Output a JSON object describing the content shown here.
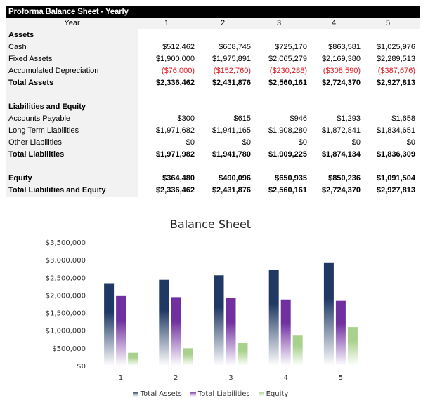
{
  "sheet": {
    "title": "Proforma Balance Sheet - Yearly",
    "header": {
      "label": "Year",
      "years": [
        "1",
        "2",
        "3",
        "4",
        "5"
      ]
    },
    "rows": [
      {
        "label": "Assets",
        "bold": true,
        "values": []
      },
      {
        "label": "Cash",
        "values": [
          "$512,462",
          "$608,745",
          "$725,170",
          "$863,581",
          "$1,025,976"
        ]
      },
      {
        "label": "Fixed Assets",
        "values": [
          "$1,900,000",
          "$1,975,891",
          "$2,065,279",
          "$2,169,380",
          "$2,289,513"
        ]
      },
      {
        "label": "Accumulated Depreciation",
        "negative": true,
        "values": [
          "($76,000)",
          "($152,760)",
          "($230,288)",
          "($308,590)",
          "($387,676)"
        ]
      },
      {
        "label": "Total Assets",
        "bold": true,
        "values": [
          "$2,336,462",
          "$2,431,876",
          "$2,560,161",
          "$2,724,370",
          "$2,927,813"
        ]
      },
      {
        "label": "",
        "values": []
      },
      {
        "label": "Liabilities and Equity",
        "bold": true,
        "values": []
      },
      {
        "label": "Accounts Payable",
        "values": [
          "$300",
          "$615",
          "$946",
          "$1,293",
          "$1,658"
        ]
      },
      {
        "label": "Long Term Liabilities",
        "values": [
          "$1,971,682",
          "$1,941,165",
          "$1,908,280",
          "$1,872,841",
          "$1,834,651"
        ]
      },
      {
        "label": "Other Liabilities",
        "values": [
          "$0",
          "$0",
          "$0",
          "$0",
          "$0"
        ]
      },
      {
        "label": "Total Liabilities",
        "bold": true,
        "values": [
          "$1,971,982",
          "$1,941,780",
          "$1,909,225",
          "$1,874,134",
          "$1,836,309"
        ]
      },
      {
        "label": "",
        "values": []
      },
      {
        "label": "Equity",
        "bold": true,
        "values": [
          "$364,480",
          "$490,096",
          "$650,935",
          "$850,236",
          "$1,091,504"
        ]
      },
      {
        "label": "Total Liabilities and Equity",
        "bold": true,
        "values": [
          "$2,336,462",
          "$2,431,876",
          "$2,560,161",
          "$2,724,370",
          "$2,927,813"
        ]
      }
    ],
    "negative_color": "#e0161e"
  },
  "chart_data": {
    "type": "bar",
    "title": "Balance Sheet",
    "categories": [
      "1",
      "2",
      "3",
      "4",
      "5"
    ],
    "series": [
      {
        "name": "Total Assets",
        "color": "#1f3864",
        "values": [
          2336462,
          2431876,
          2560161,
          2724370,
          2927813
        ]
      },
      {
        "name": "Total Liabilities",
        "color": "#7030a0",
        "values": [
          1971982,
          1941780,
          1909225,
          1874134,
          1836309
        ]
      },
      {
        "name": "Equity",
        "color": "#a9d18e",
        "values": [
          364480,
          490096,
          650935,
          850236,
          1091504
        ]
      }
    ],
    "ylim": [
      0,
      3500000
    ],
    "yticks": [
      "$0",
      "$500,000",
      "$1,000,000",
      "$1,500,000",
      "$2,000,000",
      "$2,500,000",
      "$3,000,000",
      "$3,500,000"
    ],
    "grid": false,
    "legend": "bottom",
    "fill": "gradient fading to white at base"
  }
}
